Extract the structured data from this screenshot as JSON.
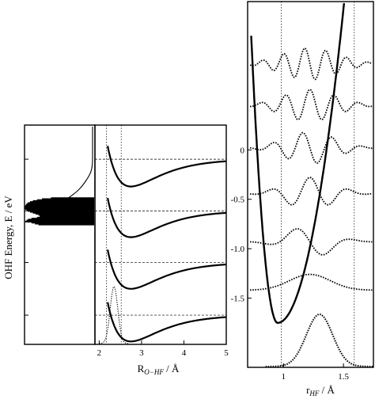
{
  "chart_data": [
    {
      "panel": "left",
      "type": "bar",
      "description_visible": "horizontal stick spectrum with a smooth profile curve",
      "ylabel": "OHF Energy, E / eV",
      "ylim": [
        -1.9,
        0.35
      ],
      "sticks": [
        {
          "energy": -0.4,
          "intensity": 0.62
        },
        {
          "energy": -0.41,
          "intensity": 0.75
        },
        {
          "energy": -0.42,
          "intensity": 0.82
        },
        {
          "energy": -0.43,
          "intensity": 0.88
        },
        {
          "energy": -0.44,
          "intensity": 0.92
        },
        {
          "energy": -0.45,
          "intensity": 0.95
        },
        {
          "energy": -0.46,
          "intensity": 0.97
        },
        {
          "energy": -0.47,
          "intensity": 0.98
        },
        {
          "energy": -0.48,
          "intensity": 0.99
        },
        {
          "energy": -0.49,
          "intensity": 1.0
        },
        {
          "energy": -0.5,
          "intensity": 1.0
        },
        {
          "energy": -0.51,
          "intensity": 0.99
        },
        {
          "energy": -0.52,
          "intensity": 0.97
        },
        {
          "energy": -0.53,
          "intensity": 0.95
        },
        {
          "energy": -0.54,
          "intensity": 0.92
        },
        {
          "energy": -0.55,
          "intensity": 0.88
        },
        {
          "energy": -0.56,
          "intensity": 0.84
        },
        {
          "energy": -0.57,
          "intensity": 0.8
        },
        {
          "energy": -0.58,
          "intensity": 0.78
        },
        {
          "energy": -0.59,
          "intensity": 0.78
        },
        {
          "energy": -0.6,
          "intensity": 0.82
        },
        {
          "energy": -0.61,
          "intensity": 0.9
        },
        {
          "energy": -0.62,
          "intensity": 0.95
        },
        {
          "energy": -0.63,
          "intensity": 0.97
        },
        {
          "energy": -0.64,
          "intensity": 0.99
        },
        {
          "energy": -0.65,
          "intensity": 0.9
        },
        {
          "energy": -0.66,
          "intensity": 0.85
        },
        {
          "energy": -0.67,
          "intensity": 0.8
        }
      ],
      "profile_peak_energy": -0.48
    },
    {
      "panel": "middle",
      "type": "line",
      "xlabel": "R",
      "xlabel_subscript": "O−HF",
      "xlabel_unit": " / Å",
      "xlim": [
        1.9,
        5.0
      ],
      "x_ticks": [
        "2",
        "3",
        "4",
        "5"
      ],
      "x_tick_values": [
        2,
        3,
        4,
        5
      ],
      "ylim": [
        -1.9,
        0.35
      ],
      "dashed_horizontal_levels": [
        0.0,
        -0.53,
        -1.06,
        -1.6
      ],
      "dotted_vertical_x": [
        2.17,
        2.52
      ],
      "potential_curves": [
        {
          "well_depth_energy": -0.28,
          "asymptote": 0.0,
          "minimum_x": 2.75
        },
        {
          "well_depth_energy": -0.8,
          "asymptote": -0.53,
          "minimum_x": 2.75
        },
        {
          "well_depth_energy": -1.33,
          "asymptote": -1.06,
          "minimum_x": 2.75
        },
        {
          "well_depth_energy": -1.87,
          "asymptote": -1.6,
          "minimum_x": 2.75
        }
      ],
      "ground_wavepacket": {
        "center_x": 2.35,
        "width": 0.09,
        "baseline": -2.35
      }
    },
    {
      "panel": "right",
      "type": "line",
      "xlabel": "r",
      "xlabel_subscript": "HF",
      "xlabel_unit": " / Å",
      "xlim": [
        0.7,
        1.75
      ],
      "x_ticks": [
        "1",
        "1.5"
      ],
      "x_tick_values": [
        1.0,
        1.5
      ],
      "ylim": [
        -2.2,
        1.5
      ],
      "y_ticks": [
        "0",
        "-0.5",
        "-1.0",
        "-1.5"
      ],
      "y_tick_values": [
        0.0,
        -0.5,
        -1.0,
        -1.5
      ],
      "dotted_vertical_x": [
        0.98,
        1.59
      ],
      "potential_well": {
        "minimum_x": 0.95,
        "minimum_energy": -1.75
      },
      "vibrational_wavefunctions": [
        {
          "v": 0,
          "energy": -1.42,
          "nodes": 0
        },
        {
          "v": 1,
          "energy": -0.93,
          "nodes": 1
        },
        {
          "v": 2,
          "energy": -0.44,
          "nodes": 2
        },
        {
          "v": 3,
          "energy": 0.02,
          "nodes": 3
        },
        {
          "v": 4,
          "energy": 0.45,
          "nodes": 4
        },
        {
          "v": 5,
          "energy": 0.87,
          "nodes": 5
        }
      ],
      "ground_state_distribution": {
        "center_x": 1.3,
        "width": 0.11
      }
    }
  ]
}
